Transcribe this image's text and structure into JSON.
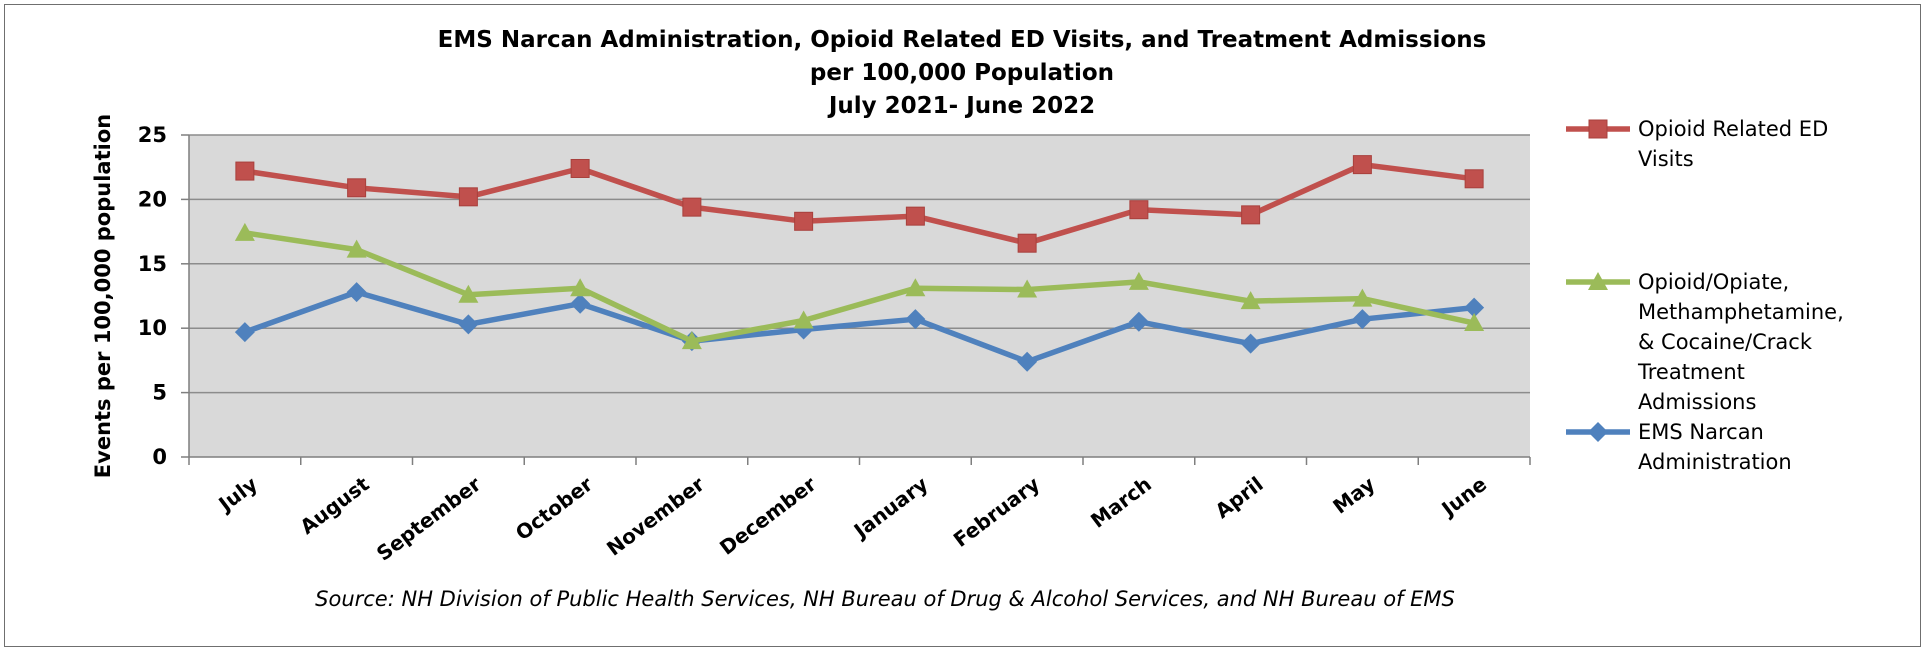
{
  "chart_data": {
    "type": "line",
    "title": [
      "EMS Narcan Administration, Opioid Related ED Visits, and Treatment Admissions",
      "per 100,000 Population",
      "July 2021- June 2022"
    ],
    "xlabel": "",
    "ylabel": "Events per 100,000 population",
    "ylim": [
      0,
      25
    ],
    "yticks": [
      "0",
      "5",
      "10",
      "15",
      "20",
      "25"
    ],
    "categories": [
      "July",
      "August",
      "September",
      "October",
      "November",
      "December",
      "January",
      "February",
      "March",
      "April",
      "May",
      "June"
    ],
    "grid": true,
    "legend_position": "right",
    "series": [
      {
        "name": "Opioid Related ED Visits",
        "legend_lines": [
          "Opioid Related ED",
          "Visits"
        ],
        "color": "#c0504d",
        "marker": "square",
        "values": [
          22.2,
          20.9,
          20.2,
          22.4,
          19.4,
          18.3,
          18.7,
          16.6,
          19.2,
          18.8,
          22.7,
          21.6
        ]
      },
      {
        "name": "Opioid/Opiate, Methamphetamine, & Cocaine/Crack Treatment Admissions",
        "legend_lines": [
          "Opioid/Opiate,",
          "Methamphetamine,",
          "& Cocaine/Crack",
          "Treatment",
          "Admissions"
        ],
        "color": "#9bbb59",
        "marker": "triangle",
        "values": [
          17.4,
          16.1,
          12.6,
          13.1,
          9.0,
          10.6,
          13.1,
          13.0,
          13.6,
          12.1,
          12.3,
          10.4
        ]
      },
      {
        "name": "EMS Narcan Administration",
        "legend_lines": [
          "EMS Narcan",
          "Administration"
        ],
        "color": "#4f81bd",
        "marker": "diamond",
        "values": [
          9.7,
          12.8,
          10.3,
          11.9,
          9.0,
          9.9,
          10.7,
          7.4,
          10.5,
          8.8,
          10.7,
          11.6
        ]
      }
    ],
    "source": "Source: NH Division of Public Health Services, NH Bureau of Drug & Alcohol Services, and NH Bureau of EMS"
  },
  "colors": {
    "plot_background": "#d9d9d9",
    "gridline": "#8c8c8c",
    "axis": "#7f7f7f"
  }
}
